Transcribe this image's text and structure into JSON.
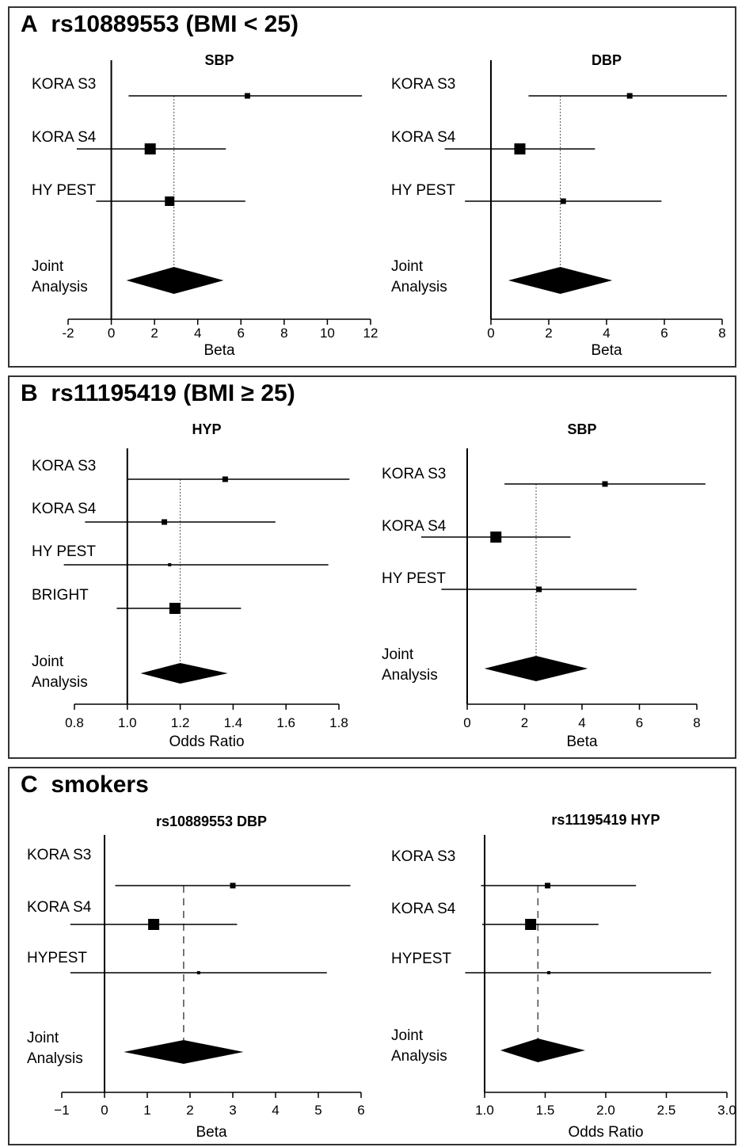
{
  "panels": [
    {
      "letter": "A",
      "title": "rs10889553 (BMI < 25)"
    },
    {
      "letter": "B",
      "title": "rs11195419 (BMI ≥ 25)"
    },
    {
      "letter": "C",
      "title": "smokers"
    }
  ],
  "chart_data": [
    {
      "type": "forest",
      "panel": "A",
      "title": "SBP",
      "xlabel": "Beta",
      "xlim": [
        -2,
        12
      ],
      "ticks": [
        -2,
        0,
        2,
        4,
        6,
        8,
        10,
        12
      ],
      "tick_labels": [
        "-2",
        "0",
        "2",
        "4",
        "6",
        "8",
        "10",
        "12"
      ],
      "ref": 0,
      "pooled_line_style": "dotted",
      "studies": [
        {
          "label": "KORA S3",
          "est": 6.3,
          "lo": 0.8,
          "hi": 11.6,
          "weight": "small"
        },
        {
          "label": "KORA S4",
          "est": 1.8,
          "lo": -1.6,
          "hi": 5.3,
          "weight": "large"
        },
        {
          "label": "HY PEST",
          "est": 2.7,
          "lo": -0.7,
          "hi": 6.2,
          "weight": "medium"
        }
      ],
      "pooled": {
        "label": [
          "Joint",
          "Analysis"
        ],
        "est": 2.9,
        "lo": 0.7,
        "hi": 5.2
      }
    },
    {
      "type": "forest",
      "panel": "A",
      "title": "DBP",
      "xlabel": "Beta",
      "xlim": [
        0,
        8
      ],
      "ticks": [
        0,
        2,
        4,
        6,
        8
      ],
      "tick_labels": [
        "0",
        "2",
        "4",
        "6",
        "8"
      ],
      "ref": 0,
      "pooled_line_style": "dotted",
      "studies": [
        {
          "label": "KORA S3",
          "est": 4.8,
          "lo": 1.3,
          "hi": 8.3,
          "weight": "small"
        },
        {
          "label": "KORA S4",
          "est": 1.0,
          "lo": -1.6,
          "hi": 3.6,
          "weight": "large"
        },
        {
          "label": "HY PEST",
          "est": 2.5,
          "lo": -0.9,
          "hi": 5.9,
          "weight": "small"
        }
      ],
      "pooled": {
        "label": [
          "Joint",
          "Analysis"
        ],
        "est": 2.4,
        "lo": 0.6,
        "hi": 4.2
      }
    },
    {
      "type": "forest",
      "panel": "B",
      "title": "HYP",
      "xlabel": "Odds Ratio",
      "xlim": [
        0.8,
        1.8
      ],
      "ticks": [
        0.8,
        1.0,
        1.2,
        1.4,
        1.6,
        1.8
      ],
      "tick_labels": [
        "0.8",
        "1.0",
        "1.2",
        "1.4",
        "1.6",
        "1.8"
      ],
      "ref": 1.0,
      "pooled_line_style": "dotted",
      "studies": [
        {
          "label": "KORA S3",
          "est": 1.37,
          "lo": 1.0,
          "hi": 1.84,
          "weight": "small"
        },
        {
          "label": "KORA S4",
          "est": 1.14,
          "lo": 0.84,
          "hi": 1.56,
          "weight": "small"
        },
        {
          "label": "HY PEST",
          "est": 1.16,
          "lo": 0.76,
          "hi": 1.76,
          "weight": "tiny"
        },
        {
          "label": "BRIGHT",
          "est": 1.18,
          "lo": 0.96,
          "hi": 1.43,
          "weight": "large"
        }
      ],
      "pooled": {
        "label": [
          "Joint",
          "Analysis"
        ],
        "est": 1.2,
        "lo": 1.05,
        "hi": 1.38
      }
    },
    {
      "type": "forest",
      "panel": "B",
      "title": "SBP",
      "xlabel": "Beta",
      "xlim": [
        0,
        8
      ],
      "ticks": [
        0,
        2,
        4,
        6,
        8
      ],
      "tick_labels": [
        "0",
        "2",
        "4",
        "6",
        "8"
      ],
      "ref": 0,
      "pooled_line_style": "dotted",
      "studies": [
        {
          "label": "KORA S3",
          "est": 4.8,
          "lo": 1.3,
          "hi": 8.3,
          "weight": "small"
        },
        {
          "label": "KORA S4",
          "est": 1.0,
          "lo": -1.6,
          "hi": 3.6,
          "weight": "large"
        },
        {
          "label": "HY PEST",
          "est": 2.5,
          "lo": -0.9,
          "hi": 5.9,
          "weight": "small"
        }
      ],
      "pooled": {
        "label": [
          "Joint",
          "Analysis"
        ],
        "est": 2.4,
        "lo": 0.6,
        "hi": 4.2
      }
    },
    {
      "type": "forest",
      "panel": "C",
      "title": "rs10889553 DBP",
      "xlabel": "Beta",
      "xlim": [
        -1,
        6
      ],
      "ticks": [
        -1,
        0,
        1,
        2,
        3,
        4,
        5,
        6
      ],
      "tick_labels": [
        "−1",
        "0",
        "1",
        "2",
        "3",
        "4",
        "5",
        "6"
      ],
      "ref": 0,
      "pooled_line_style": "dashed",
      "studies": [
        {
          "label": "KORA S3",
          "est": 3.0,
          "lo": 0.25,
          "hi": 5.75,
          "weight": "small"
        },
        {
          "label": "KORA S4",
          "est": 1.15,
          "lo": -0.8,
          "hi": 3.1,
          "weight": "large"
        },
        {
          "label": "HYPEST",
          "est": 2.2,
          "lo": -0.8,
          "hi": 5.2,
          "weight": "tiny"
        }
      ],
      "pooled": {
        "label": [
          "Joint",
          "Analysis"
        ],
        "est": 1.85,
        "lo": 0.45,
        "hi": 3.25
      }
    },
    {
      "type": "forest",
      "panel": "C",
      "title": "rs11195419 HYP",
      "xlabel": "Odds Ratio",
      "xlim": [
        1.0,
        3.0
      ],
      "ticks": [
        1.0,
        1.5,
        2.0,
        2.5,
        3.0
      ],
      "tick_labels": [
        "1.0",
        "1.5",
        "2.0",
        "2.5",
        "3.0"
      ],
      "ref": 1.0,
      "pooled_line_style": "dashed",
      "studies": [
        {
          "label": "KORA S3",
          "est": 1.52,
          "lo": 0.97,
          "hi": 2.25,
          "weight": "small"
        },
        {
          "label": "KORA S4",
          "est": 1.38,
          "lo": 0.98,
          "hi": 1.94,
          "weight": "large"
        },
        {
          "label": "HYPEST",
          "est": 1.53,
          "lo": 0.84,
          "hi": 2.87,
          "weight": "tiny"
        }
      ],
      "pooled": {
        "label": [
          "Joint",
          "Analysis"
        ],
        "est": 1.44,
        "lo": 1.13,
        "hi": 1.83
      }
    }
  ]
}
